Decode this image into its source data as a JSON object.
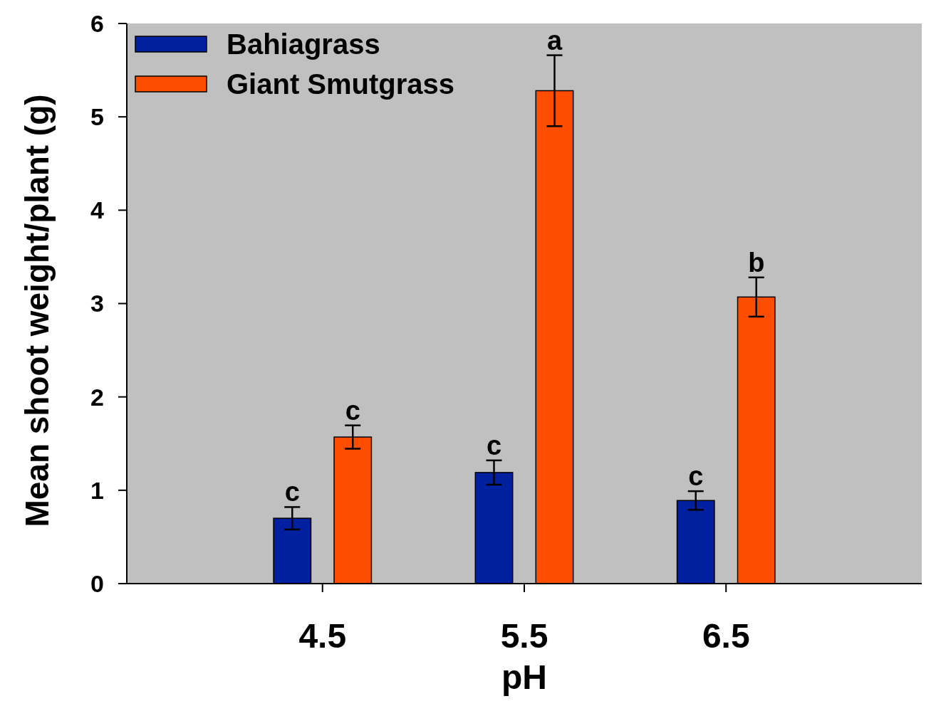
{
  "chart_data": {
    "type": "bar",
    "xlabel": "pH",
    "ylabel": "Mean shoot weight/plant (g)",
    "categories": [
      "4.5",
      "5.5",
      "6.5"
    ],
    "series": [
      {
        "name": "Bahiagrass",
        "color": "#0020a0",
        "values": [
          0.7,
          1.19,
          0.89
        ],
        "errors": [
          0.12,
          0.13,
          0.1
        ]
      },
      {
        "name": "Giant Smutgrass",
        "color": "#ff4d00",
        "values": [
          1.57,
          5.28,
          3.07
        ],
        "errors": [
          0.125,
          0.38,
          0.21
        ]
      }
    ],
    "ylim": [
      0,
      6
    ],
    "yticks": [
      0,
      1,
      2,
      3,
      4,
      5,
      6
    ],
    "grid": false,
    "legend": "top left",
    "annotations": [
      "c",
      "c",
      "c",
      "a",
      "c",
      "b"
    ]
  }
}
